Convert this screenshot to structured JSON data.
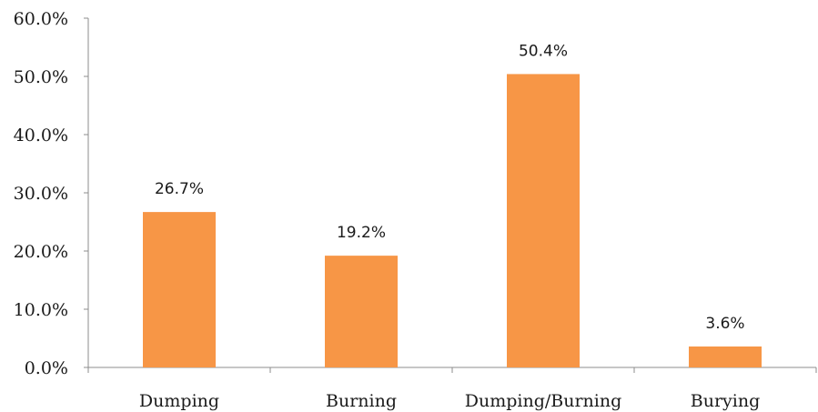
{
  "chart_data": {
    "type": "bar",
    "title": "",
    "xlabel": "",
    "ylabel": "",
    "categories": [
      "Dumping",
      "Burning",
      "Dumping/Burning",
      "Burying"
    ],
    "values": [
      26.7,
      19.2,
      50.4,
      3.6
    ],
    "data_labels": [
      "26.7%",
      "19.2%",
      "50.4%",
      "3.6%"
    ],
    "ylim": [
      0,
      60
    ],
    "y_ticks": [
      0,
      10,
      20,
      30,
      40,
      50,
      60
    ],
    "y_tick_labels": [
      "0.0%",
      "10.0%",
      "20.0%",
      "30.0%",
      "40.0%",
      "50.0%",
      "60.0%"
    ],
    "bar_color": "#F79646",
    "grid": false,
    "legend": "none"
  }
}
